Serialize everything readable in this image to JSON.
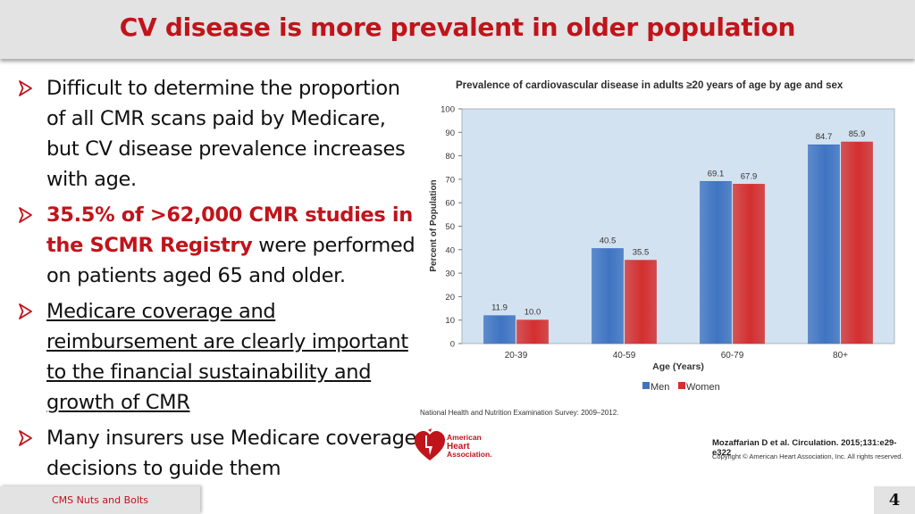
{
  "header": {
    "title": "CV disease is more prevalent in older population"
  },
  "bullets": [
    {
      "text": "Difficult to determine the proportion of all CMR scans paid by Medicare, but CV disease prevalence increases with age."
    },
    {
      "highlight": "35.5% of >62,000 CMR studies in the SCMR Registry",
      "text": " were performed on patients aged 65 and older."
    },
    {
      "text": "Medicare coverage and reimbursement are clearly important to the financial sustainability and growth of CMR"
    },
    {
      "text": "Many insurers use Medicare coverage decisions to guide them"
    }
  ],
  "chart_data": {
    "type": "bar",
    "title": "Prevalence of cardiovascular disease in adults ≥20 years of age by age and sex",
    "xlabel": "Age (Years)",
    "ylabel": "Percent of Population",
    "categories": [
      "20-39",
      "40-59",
      "60-79",
      "80+"
    ],
    "series": [
      {
        "name": "Men",
        "color": "#3f74c2",
        "values": [
          11.9,
          40.5,
          69.1,
          84.7
        ],
        "labels": [
          "11.9",
          "40.5",
          "69.1",
          "84.7"
        ]
      },
      {
        "name": "Women",
        "color": "#d32f2f",
        "values": [
          10.0,
          35.5,
          67.9,
          85.9
        ],
        "labels": [
          "10.0",
          "35.5",
          "67.9",
          "85.9"
        ]
      }
    ],
    "ylim": [
      0,
      100
    ],
    "yticks": [
      0,
      10,
      20,
      30,
      40,
      50,
      60,
      70,
      80,
      90,
      100
    ],
    "legend": "bottom"
  },
  "chart_footer": {
    "source": "National Health and Nutrition Examination Survey: 2009–2012.",
    "org_lines": [
      "American",
      "Heart",
      "Association."
    ],
    "citation": "Mozaffarian D et al. Circulation. 2015;131:e29-e322",
    "copyright": "Copyright © American Heart Association, Inc. All rights reserved."
  },
  "footer": {
    "label": "CMS Nuts and Bolts",
    "page": "4"
  },
  "colors": {
    "accent": "#c0141b",
    "men": "#3f74c2",
    "women": "#d32f2f",
    "plot_bg": "#d3e2f1"
  }
}
